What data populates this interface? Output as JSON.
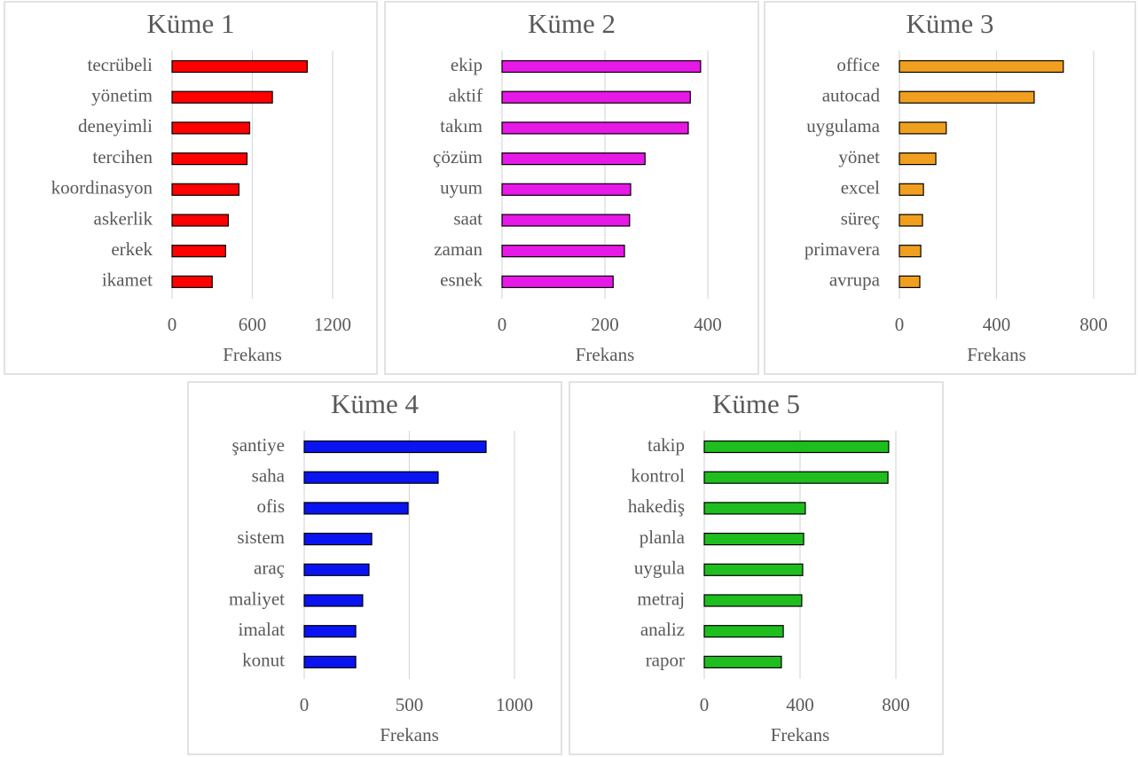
{
  "chart_data": [
    {
      "type": "bar",
      "title": "Küme 1",
      "categories": [
        "tecrübeli",
        "yönetim",
        "deneyimli",
        "tercihen",
        "koordinasyon",
        "askerlik",
        "erkek",
        "ikamet"
      ],
      "values": [
        1010,
        750,
        580,
        560,
        500,
        420,
        400,
        300
      ],
      "color": "#ff0000",
      "xlim": [
        0,
        1200
      ],
      "xticks": [
        0,
        600,
        1200
      ],
      "xlabel": "Frekans",
      "grid": true
    },
    {
      "type": "bar",
      "title": "Küme 2",
      "categories": [
        "ekip",
        "aktif",
        "takım",
        "çözüm",
        "uyum",
        "saat",
        "zaman",
        "esnek"
      ],
      "values": [
        386,
        366,
        362,
        278,
        250,
        248,
        238,
        216
      ],
      "color": "#e619e6",
      "xlim": [
        0,
        400
      ],
      "xticks": [
        0,
        200,
        400
      ],
      "xlabel": "Frekans",
      "grid": true
    },
    {
      "type": "bar",
      "title": "Küme 3",
      "categories": [
        "office",
        "autocad",
        "uygulama",
        "yönet",
        "excel",
        "süreç",
        "primavera",
        "avrupa"
      ],
      "values": [
        675,
        555,
        193,
        150,
        99,
        95,
        88,
        84
      ],
      "color": "#f0a01e",
      "xlim": [
        0,
        800
      ],
      "xticks": [
        0,
        400,
        800
      ],
      "xlabel": "Frekans",
      "grid": true
    },
    {
      "type": "bar",
      "title": "Küme 4",
      "categories": [
        "şantiye",
        "saha",
        "ofis",
        "sistem",
        "araç",
        "maliyet",
        "imalat",
        "konut"
      ],
      "values": [
        865,
        637,
        494,
        321,
        308,
        278,
        245,
        245
      ],
      "color": "#0a14f0",
      "xlim": [
        0,
        1000
      ],
      "xticks": [
        0,
        500,
        1000
      ],
      "xlabel": "Frekans",
      "grid": true
    },
    {
      "type": "bar",
      "title": "Küme 5",
      "categories": [
        "takip",
        "kontrol",
        "hakediş",
        "planla",
        "uygula",
        "metraj",
        "analiz",
        "rapor"
      ],
      "values": [
        770,
        767,
        422,
        415,
        411,
        407,
        330,
        322
      ],
      "color": "#1ebe1e",
      "xlim": [
        0,
        800
      ],
      "xticks": [
        0,
        400,
        800
      ],
      "xlabel": "Frekans",
      "grid": true
    }
  ]
}
